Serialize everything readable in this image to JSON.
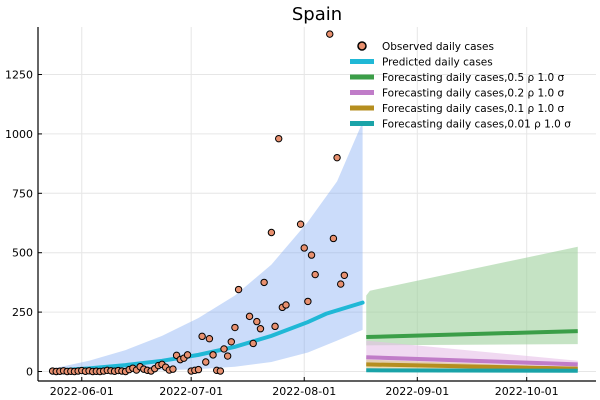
{
  "chart_data": {
    "type": "scatter",
    "title": "Spain",
    "xlabel": "",
    "ylabel": "",
    "x_range": [
      "2022-05-20",
      "2022-10-20"
    ],
    "ylim": [
      -40,
      1450
    ],
    "x_ticks": [
      {
        "date": "2022-06-01",
        "label": "2022-06-01"
      },
      {
        "date": "2022-07-01",
        "label": "2022-07-01"
      },
      {
        "date": "2022-08-01",
        "label": "2022-08-01"
      },
      {
        "date": "2022-09-01",
        "label": "2022-09-01"
      },
      {
        "date": "2022-10-01",
        "label": "2022-10-01"
      }
    ],
    "y_ticks": [
      {
        "value": 0,
        "label": "0"
      },
      {
        "value": 250,
        "label": "250"
      },
      {
        "value": 500,
        "label": "500"
      },
      {
        "value": 750,
        "label": "750"
      },
      {
        "value": 1000,
        "label": "1000"
      },
      {
        "value": 1250,
        "label": "1250"
      }
    ],
    "grid": true,
    "legend_position": "top-right",
    "observed": {
      "name": "Observed daily cases",
      "color": "#e8906f",
      "points": [
        [
          "2022-05-24",
          2
        ],
        [
          "2022-05-25",
          0
        ],
        [
          "2022-05-26",
          1
        ],
        [
          "2022-05-27",
          3
        ],
        [
          "2022-05-28",
          0
        ],
        [
          "2022-05-29",
          1
        ],
        [
          "2022-05-30",
          0
        ],
        [
          "2022-05-31",
          2
        ],
        [
          "2022-06-01",
          4
        ],
        [
          "2022-06-02",
          1
        ],
        [
          "2022-06-03",
          3
        ],
        [
          "2022-06-04",
          0
        ],
        [
          "2022-06-05",
          1
        ],
        [
          "2022-06-06",
          0
        ],
        [
          "2022-06-07",
          2
        ],
        [
          "2022-06-08",
          5
        ],
        [
          "2022-06-09",
          3
        ],
        [
          "2022-06-10",
          1
        ],
        [
          "2022-06-11",
          4
        ],
        [
          "2022-06-12",
          2
        ],
        [
          "2022-06-13",
          0
        ],
        [
          "2022-06-14",
          8
        ],
        [
          "2022-06-15",
          14
        ],
        [
          "2022-06-16",
          6
        ],
        [
          "2022-06-17",
          20
        ],
        [
          "2022-06-18",
          10
        ],
        [
          "2022-06-19",
          5
        ],
        [
          "2022-06-20",
          2
        ],
        [
          "2022-06-21",
          12
        ],
        [
          "2022-06-22",
          25
        ],
        [
          "2022-06-23",
          30
        ],
        [
          "2022-06-24",
          18
        ],
        [
          "2022-06-25",
          6
        ],
        [
          "2022-06-26",
          10
        ],
        [
          "2022-06-27",
          68
        ],
        [
          "2022-06-28",
          50
        ],
        [
          "2022-06-29",
          56
        ],
        [
          "2022-06-30",
          70
        ],
        [
          "2022-07-01",
          2
        ],
        [
          "2022-07-02",
          5
        ],
        [
          "2022-07-03",
          8
        ],
        [
          "2022-07-04",
          148
        ],
        [
          "2022-07-05",
          40
        ],
        [
          "2022-07-06",
          138
        ],
        [
          "2022-07-07",
          70
        ],
        [
          "2022-07-08",
          5
        ],
        [
          "2022-07-09",
          2
        ],
        [
          "2022-07-10",
          95
        ],
        [
          "2022-07-11",
          65
        ],
        [
          "2022-07-12",
          125
        ],
        [
          "2022-07-13",
          185
        ],
        [
          "2022-07-14",
          345
        ],
        [
          "2022-07-17",
          232
        ],
        [
          "2022-07-18",
          118
        ],
        [
          "2022-07-19",
          210
        ],
        [
          "2022-07-20",
          180
        ],
        [
          "2022-07-21",
          375
        ],
        [
          "2022-07-23",
          585
        ],
        [
          "2022-07-24",
          190
        ],
        [
          "2022-07-25",
          980
        ],
        [
          "2022-07-26",
          270
        ],
        [
          "2022-07-27",
          280
        ],
        [
          "2022-07-31",
          620
        ],
        [
          "2022-08-01",
          520
        ],
        [
          "2022-08-02",
          295
        ],
        [
          "2022-08-03",
          490
        ],
        [
          "2022-08-04",
          408
        ],
        [
          "2022-08-08",
          1420
        ],
        [
          "2022-08-09",
          560
        ],
        [
          "2022-08-10",
          900
        ],
        [
          "2022-08-11",
          368
        ],
        [
          "2022-08-12",
          405
        ]
      ]
    },
    "predicted": {
      "name": "Predicted daily cases",
      "color": "#20b8d6",
      "band_color": "#6f9df0",
      "points": [
        [
          "2022-05-24",
          3
        ],
        [
          "2022-06-03",
          13
        ],
        [
          "2022-06-13",
          27
        ],
        [
          "2022-06-23",
          45
        ],
        [
          "2022-07-03",
          70
        ],
        [
          "2022-07-13",
          104
        ],
        [
          "2022-07-23",
          150
        ],
        [
          "2022-08-02",
          208
        ],
        [
          "2022-08-07",
          243
        ],
        [
          "2022-08-17",
          290
        ]
      ],
      "band_upper": [
        [
          "2022-05-24",
          12
        ],
        [
          "2022-06-03",
          45
        ],
        [
          "2022-06-13",
          90
        ],
        [
          "2022-06-23",
          150
        ],
        [
          "2022-07-03",
          225
        ],
        [
          "2022-07-13",
          320
        ],
        [
          "2022-07-23",
          450
        ],
        [
          "2022-08-02",
          630
        ],
        [
          "2022-08-10",
          800
        ],
        [
          "2022-08-17",
          1050
        ]
      ],
      "band_lower": [
        [
          "2022-05-24",
          0
        ],
        [
          "2022-06-03",
          0
        ],
        [
          "2022-06-13",
          2
        ],
        [
          "2022-06-23",
          5
        ],
        [
          "2022-07-03",
          10
        ],
        [
          "2022-07-13",
          20
        ],
        [
          "2022-07-23",
          40
        ],
        [
          "2022-08-02",
          80
        ],
        [
          "2022-08-10",
          130
        ],
        [
          "2022-08-17",
          175
        ]
      ]
    },
    "forecasts": [
      {
        "name": "Forecasting daily cases,0.5 ρ 1.0 σ",
        "color": "#3b9e48",
        "band_color": "#9fd09c",
        "start": "2022-08-18",
        "end": "2022-10-15",
        "line": [
          145,
          170
        ],
        "band_upper_start": [
          320,
          340
        ],
        "band_upper_end": 525,
        "band_lower": [
          110,
          115
        ]
      },
      {
        "name": "Forecasting daily cases,0.2 ρ 1.0 σ",
        "color": "#c07cc8",
        "band_color": "#e6bfe7",
        "start": "2022-08-18",
        "end": "2022-10-15",
        "line": [
          60,
          30
        ],
        "band_upper": [
          130,
          45
        ],
        "band_lower": [
          25,
          10
        ]
      },
      {
        "name": "Forecasting daily cases,0.1 ρ 1.0 σ",
        "color": "#b58e1f",
        "band_color": "#dcc886",
        "start": "2022-08-18",
        "end": "2022-10-15",
        "line": [
          30,
          12
        ],
        "band_upper": [
          50,
          18
        ],
        "band_lower": [
          12,
          5
        ]
      },
      {
        "name": "Forecasting daily cases,0.01 ρ 1.0 σ",
        "color": "#1aa3a8",
        "band_color": "#7fd0d3",
        "start": "2022-08-18",
        "end": "2022-10-15",
        "line": [
          5,
          3
        ],
        "band_upper": [
          10,
          5
        ],
        "band_lower": [
          0,
          0
        ]
      }
    ]
  }
}
